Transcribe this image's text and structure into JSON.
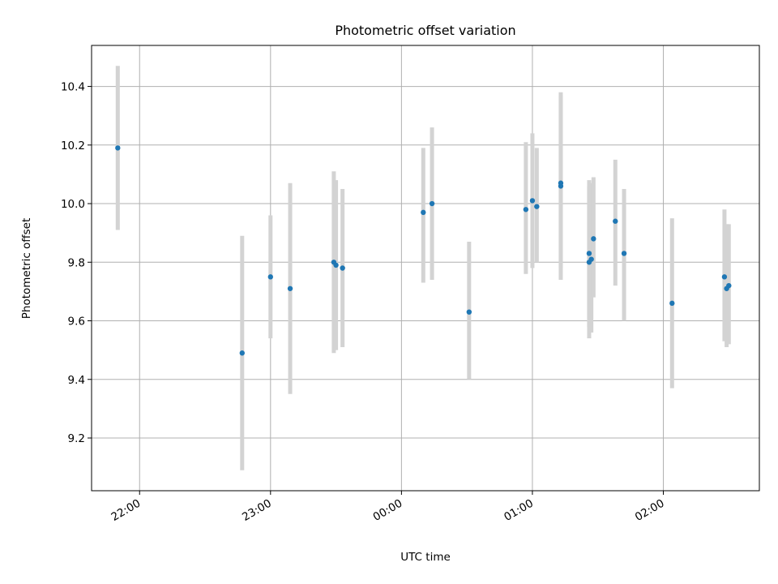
{
  "chart_data": {
    "type": "scatter",
    "title": "Photometric offset variation",
    "xlabel": "UTC time",
    "ylabel": "Photometric offset",
    "x_axis": {
      "kind": "time",
      "range": [
        "21:38",
        "26:44"
      ],
      "ticks": [
        {
          "value": "22:00",
          "label": "22:00"
        },
        {
          "value": "23:00",
          "label": "23:00"
        },
        {
          "value": "24:00",
          "label": "00:00"
        },
        {
          "value": "25:00",
          "label": "01:00"
        },
        {
          "value": "26:00",
          "label": "02:00"
        }
      ]
    },
    "y_axis": {
      "range": [
        9.02,
        10.54
      ],
      "ticks": [
        {
          "value": 9.2,
          "label": "9.2"
        },
        {
          "value": 9.4,
          "label": "9.4"
        },
        {
          "value": 9.6,
          "label": "9.6"
        },
        {
          "value": 9.8,
          "label": "9.8"
        },
        {
          "value": 10.0,
          "label": "10.0"
        },
        {
          "value": 10.2,
          "label": "10.2"
        },
        {
          "value": 10.4,
          "label": "10.4"
        }
      ]
    },
    "grid": true,
    "colors": {
      "point": "#1f77b4",
      "errorbar": "#d3d3d3"
    },
    "points": [
      {
        "t": "21:50",
        "y": 10.19,
        "lo": 9.91,
        "hi": 10.47
      },
      {
        "t": "22:47",
        "y": 9.49,
        "lo": 9.09,
        "hi": 9.89
      },
      {
        "t": "23:00",
        "y": 9.75,
        "lo": 9.54,
        "hi": 9.96
      },
      {
        "t": "23:09",
        "y": 9.71,
        "lo": 9.35,
        "hi": 10.07
      },
      {
        "t": "23:29",
        "y": 9.8,
        "lo": 9.49,
        "hi": 10.11
      },
      {
        "t": "23:30",
        "y": 9.79,
        "lo": 9.5,
        "hi": 10.08
      },
      {
        "t": "23:33",
        "y": 9.78,
        "lo": 9.51,
        "hi": 10.05
      },
      {
        "t": "24:10",
        "y": 9.97,
        "lo": 9.73,
        "hi": 10.19
      },
      {
        "t": "24:14",
        "y": 10.0,
        "lo": 9.74,
        "hi": 10.26
      },
      {
        "t": "24:31",
        "y": 9.63,
        "lo": 9.4,
        "hi": 9.87
      },
      {
        "t": "24:57",
        "y": 9.98,
        "lo": 9.76,
        "hi": 10.21
      },
      {
        "t": "25:00",
        "y": 10.01,
        "lo": 9.78,
        "hi": 10.24
      },
      {
        "t": "25:02",
        "y": 9.99,
        "lo": 9.8,
        "hi": 10.19
      },
      {
        "t": "25:13",
        "y": 10.07,
        "lo": 9.78,
        "hi": 10.38
      },
      {
        "t": "25:13",
        "y": 10.06,
        "lo": 9.74,
        "hi": 10.37
      },
      {
        "t": "25:26",
        "y": 9.8,
        "lo": 9.54,
        "hi": 10.06
      },
      {
        "t": "25:26",
        "y": 9.83,
        "lo": 9.58,
        "hi": 10.08
      },
      {
        "t": "25:27",
        "y": 9.81,
        "lo": 9.56,
        "hi": 10.07
      },
      {
        "t": "25:28",
        "y": 9.88,
        "lo": 9.68,
        "hi": 10.09
      },
      {
        "t": "25:38",
        "y": 9.94,
        "lo": 9.72,
        "hi": 10.15
      },
      {
        "t": "25:42",
        "y": 9.83,
        "lo": 9.6,
        "hi": 10.05
      },
      {
        "t": "26:04",
        "y": 9.66,
        "lo": 9.37,
        "hi": 9.95
      },
      {
        "t": "26:28",
        "y": 9.75,
        "lo": 9.53,
        "hi": 9.98
      },
      {
        "t": "26:29",
        "y": 9.71,
        "lo": 9.51,
        "hi": 9.93
      },
      {
        "t": "26:30",
        "y": 9.72,
        "lo": 9.52,
        "hi": 9.93
      }
    ]
  }
}
